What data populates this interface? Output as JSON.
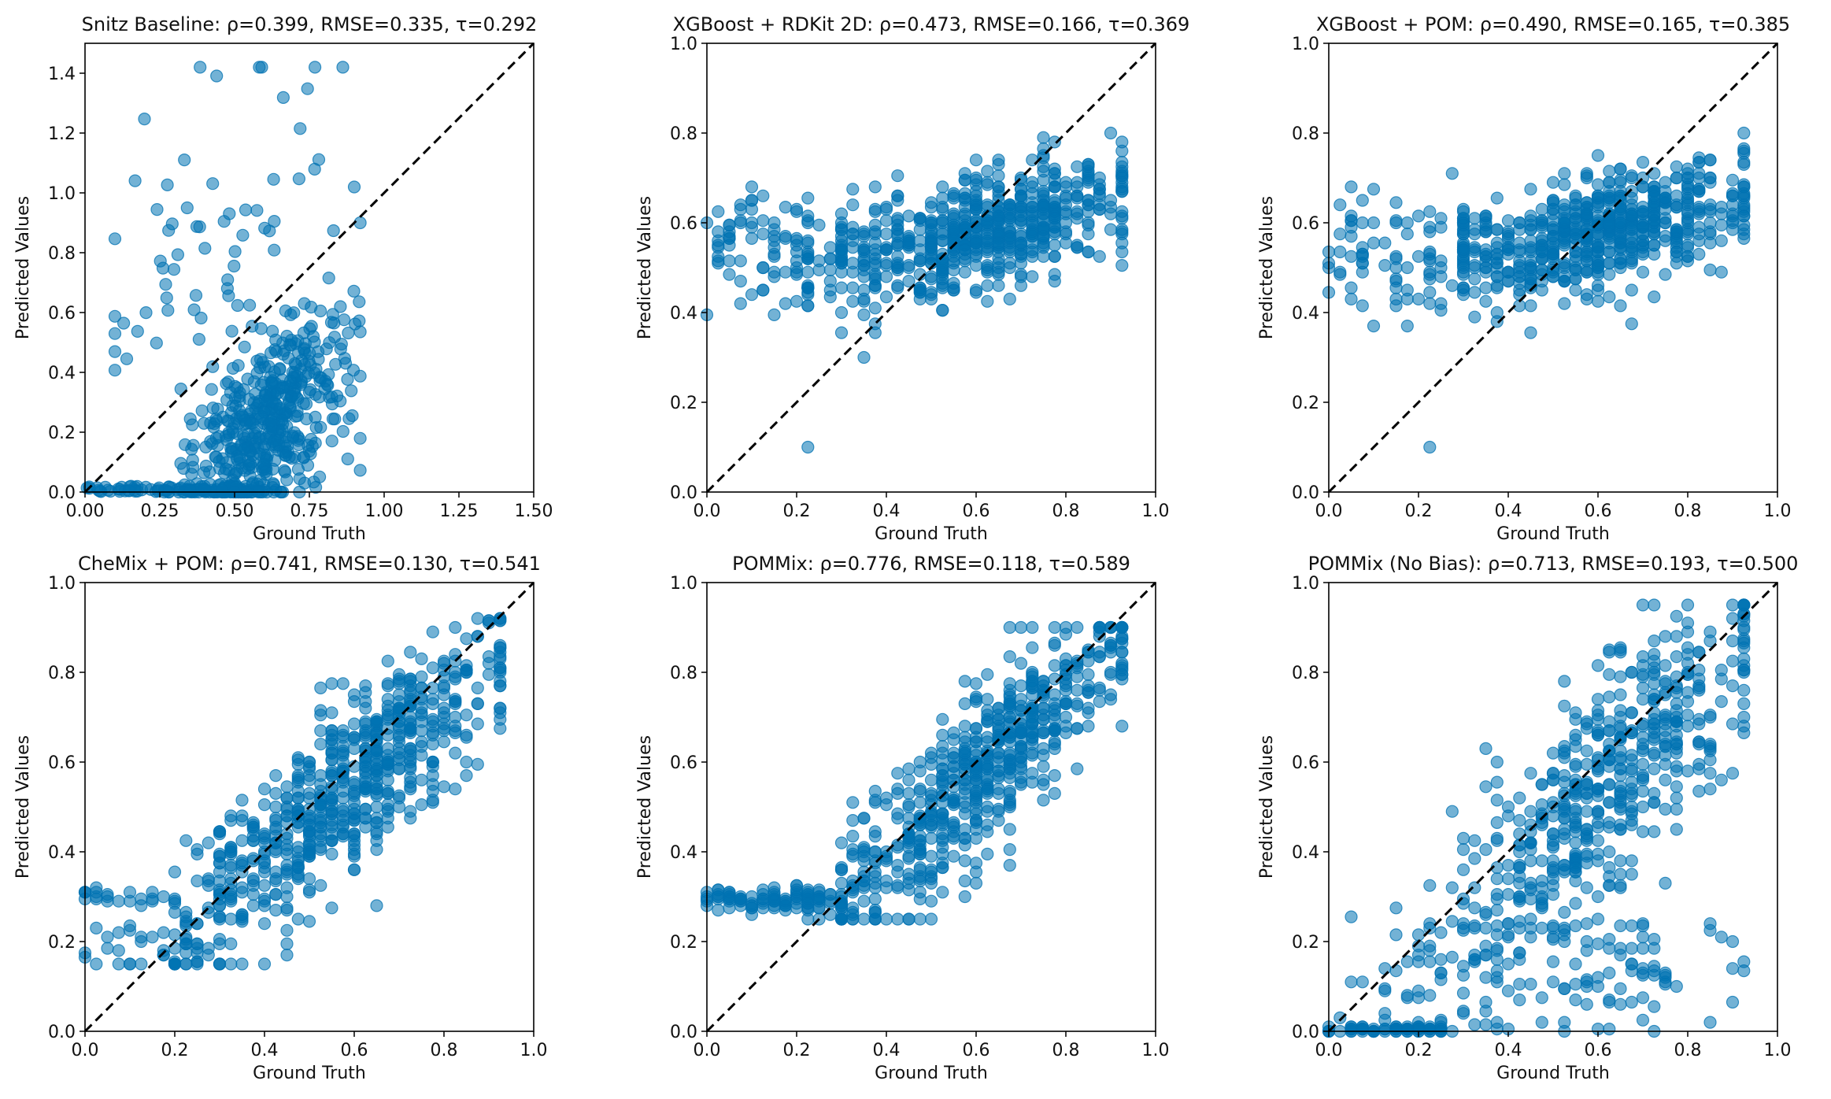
{
  "chart_data": [
    {
      "type": "scatter",
      "title": "Snitz Baseline: ρ=0.399, RMSE=0.335, τ=0.292",
      "xlabel": "Ground Truth",
      "ylabel": "Predicted Values",
      "xlim": [
        0,
        1.5
      ],
      "ylim": [
        0,
        1.5
      ],
      "xticks": [
        "0.00",
        "0.25",
        "0.50",
        "0.75",
        "1.00",
        "1.25",
        "1.50"
      ],
      "yticks": [
        "0.0",
        "0.2",
        "0.4",
        "0.6",
        "0.8",
        "1.0",
        "1.2",
        "1.4"
      ],
      "reference_line": "y = x (dashed)",
      "pattern": "snitz",
      "n_points": 640,
      "seed": 11,
      "color": "#0072B2"
    },
    {
      "type": "scatter",
      "title": "XGBoost + RDKit 2D: ρ=0.473, RMSE=0.166, τ=0.369",
      "xlabel": "Ground Truth",
      "ylabel": "Predicted Values",
      "xlim": [
        0,
        1
      ],
      "ylim": [
        0,
        1
      ],
      "xticks": [
        "0.0",
        "0.2",
        "0.4",
        "0.6",
        "0.8",
        "1.0"
      ],
      "yticks": [
        "0.0",
        "0.2",
        "0.4",
        "0.6",
        "0.8",
        "1.0"
      ],
      "reference_line": "y = x (dashed)",
      "pattern": "xgb",
      "n_points": 700,
      "seed": 23,
      "color": "#0072B2"
    },
    {
      "type": "scatter",
      "title": "XGBoost + POM: ρ=0.490, RMSE=0.165, τ=0.385",
      "xlabel": "Ground Truth",
      "ylabel": "Predicted Values",
      "xlim": [
        0,
        1
      ],
      "ylim": [
        0,
        1
      ],
      "xticks": [
        "0.0",
        "0.2",
        "0.4",
        "0.6",
        "0.8",
        "1.0"
      ],
      "yticks": [
        "0.0",
        "0.2",
        "0.4",
        "0.6",
        "0.8",
        "1.0"
      ],
      "reference_line": "y = x (dashed)",
      "pattern": "xgb",
      "n_points": 700,
      "seed": 37,
      "color": "#0072B2"
    },
    {
      "type": "scatter",
      "title": "CheMix + POM: ρ=0.741, RMSE=0.130, τ=0.541",
      "xlabel": "Ground Truth",
      "ylabel": "Predicted Values",
      "xlim": [
        0,
        1
      ],
      "ylim": [
        0,
        1
      ],
      "xticks": [
        "0.0",
        "0.2",
        "0.4",
        "0.6",
        "0.8",
        "1.0"
      ],
      "yticks": [
        "0.0",
        "0.2",
        "0.4",
        "0.6",
        "0.8",
        "1.0"
      ],
      "reference_line": "y = x (dashed)",
      "pattern": "chemix",
      "n_points": 700,
      "seed": 41,
      "color": "#0072B2"
    },
    {
      "type": "scatter",
      "title": "POMMix: ρ=0.776, RMSE=0.118, τ=0.589",
      "xlabel": "Ground Truth",
      "ylabel": "Predicted Values",
      "xlim": [
        0,
        1
      ],
      "ylim": [
        0,
        1
      ],
      "xticks": [
        "0.0",
        "0.2",
        "0.4",
        "0.6",
        "0.8",
        "1.0"
      ],
      "yticks": [
        "0.0",
        "0.2",
        "0.4",
        "0.6",
        "0.8",
        "1.0"
      ],
      "reference_line": "y = x (dashed)",
      "pattern": "pommix",
      "n_points": 700,
      "seed": 53,
      "color": "#0072B2"
    },
    {
      "type": "scatter",
      "title": "POMMix (No Bias): ρ=0.713, RMSE=0.193, τ=0.500",
      "xlabel": "Ground Truth",
      "ylabel": "Predicted Values",
      "xlim": [
        0,
        1
      ],
      "ylim": [
        0,
        1
      ],
      "xticks": [
        "0.0",
        "0.2",
        "0.4",
        "0.6",
        "0.8",
        "1.0"
      ],
      "yticks": [
        "0.0",
        "0.2",
        "0.4",
        "0.6",
        "0.8",
        "1.0"
      ],
      "reference_line": "y = x (dashed)",
      "pattern": "nobias",
      "n_points": 700,
      "seed": 67,
      "color": "#0072B2"
    }
  ]
}
